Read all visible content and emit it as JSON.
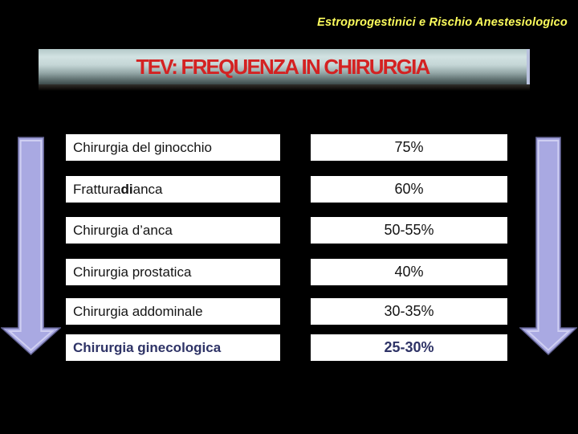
{
  "slide": {
    "background": "#000000"
  },
  "header": {
    "title": "Estroprogestinici e Rischio Anestesiologico",
    "color": "#fdfd5c"
  },
  "banner": {
    "title": "TEV: FREQUENZA IN CHIRURGIA",
    "text_color": "#d42222",
    "bg_top": "#d2e2e2",
    "bg_bottom": "#3d4b4b"
  },
  "table": {
    "emphasis_color": "#2e3366",
    "rows": [
      {
        "label_parts": [
          {
            "t": "Chirurgia del ginocchio",
            "b": false
          }
        ],
        "value": "75%",
        "emphasis": false
      },
      {
        "label_parts": [
          {
            "t": "Frattura ",
            "b": false
          },
          {
            "t": "di",
            "b": true
          },
          {
            "t": " anca",
            "b": false
          }
        ],
        "value": "60%",
        "emphasis": false
      },
      {
        "label_parts": [
          {
            "t": "Chirurgia d’anca",
            "b": false
          }
        ],
        "value": "50-55%",
        "emphasis": false
      },
      {
        "label_parts": [
          {
            "t": "Chirurgia prostatica",
            "b": false
          }
        ],
        "value": "40%",
        "emphasis": false
      },
      {
        "label_parts": [
          {
            "t": "Chirurgia addominale",
            "b": false
          }
        ],
        "value": "30-35%",
        "emphasis": false
      },
      {
        "label_parts": [
          {
            "t": "Chirurgia ginecologica",
            "b": false
          }
        ],
        "value": "25-30%",
        "emphasis": true
      }
    ]
  },
  "arrows": {
    "direction": "down",
    "fill": "#a9a9e2",
    "outline": "#5f5f8e",
    "highlight": "#d6d6f4"
  }
}
